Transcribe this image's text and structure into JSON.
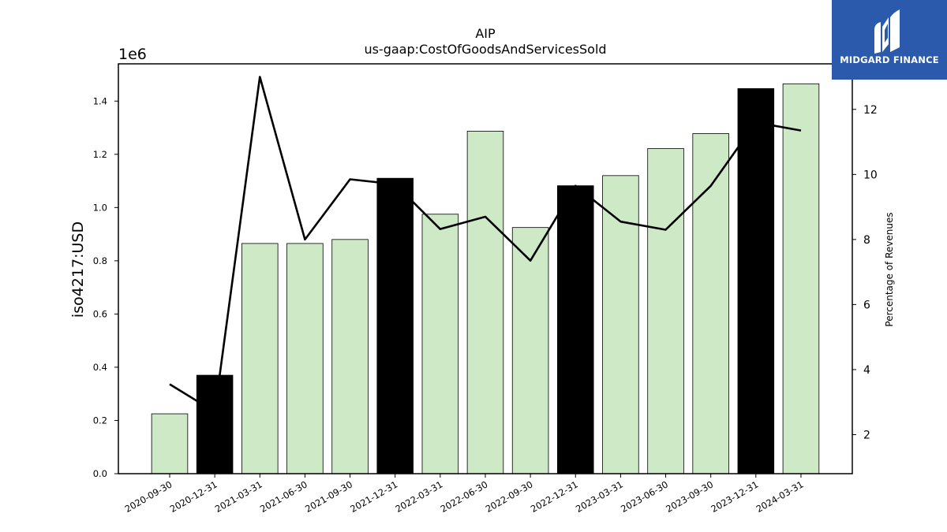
{
  "chart_data": {
    "type": "bar",
    "title": "AIP",
    "subtitle": "us-gaap:CostOfGoodsAndServicesSold",
    "ylabel": "iso4217:USD",
    "y_offset_label": "1e6",
    "y2label": "Percentage of Revenues",
    "categories": [
      "2020-09-30",
      "2020-12-31",
      "2021-03-31",
      "2021-06-30",
      "2021-09-30",
      "2021-12-31",
      "2022-03-31",
      "2022-06-30",
      "2022-09-30",
      "2022-12-31",
      "2023-03-31",
      "2023-06-30",
      "2023-09-30",
      "2023-12-31",
      "2024-03-31"
    ],
    "series": [
      {
        "type": "bar",
        "axis": "left",
        "values": [
          225000,
          370000,
          865000,
          865000,
          880000,
          1110000,
          975000,
          1287000,
          925000,
          1082000,
          1120000,
          1222000,
          1278000,
          1447000,
          1465000
        ],
        "highlight": [
          false,
          true,
          false,
          false,
          false,
          true,
          false,
          false,
          false,
          true,
          false,
          false,
          false,
          true,
          false
        ]
      },
      {
        "type": "line",
        "axis": "right",
        "values": [
          3.55,
          2.7,
          13.0,
          8.0,
          9.85,
          9.7,
          8.32,
          8.7,
          7.35,
          9.65,
          8.55,
          8.3,
          9.65,
          11.6,
          11.35
        ]
      }
    ],
    "ylim": [
      0,
      1540000
    ],
    "y_ticks": [
      0.0,
      0.2,
      0.4,
      0.6,
      0.8,
      1.0,
      1.2,
      1.4
    ],
    "y2lim": [
      0.8,
      13.4
    ],
    "y2_ticks": [
      2,
      4,
      6,
      8,
      10,
      12
    ],
    "colors": {
      "bar": "#cde9c6",
      "bar_highlight": "#000000",
      "line": "#000000"
    },
    "grid": false,
    "legend": "none"
  },
  "logo": {
    "text": "MIDGARD FINANCE",
    "background": "#2b5aad"
  }
}
